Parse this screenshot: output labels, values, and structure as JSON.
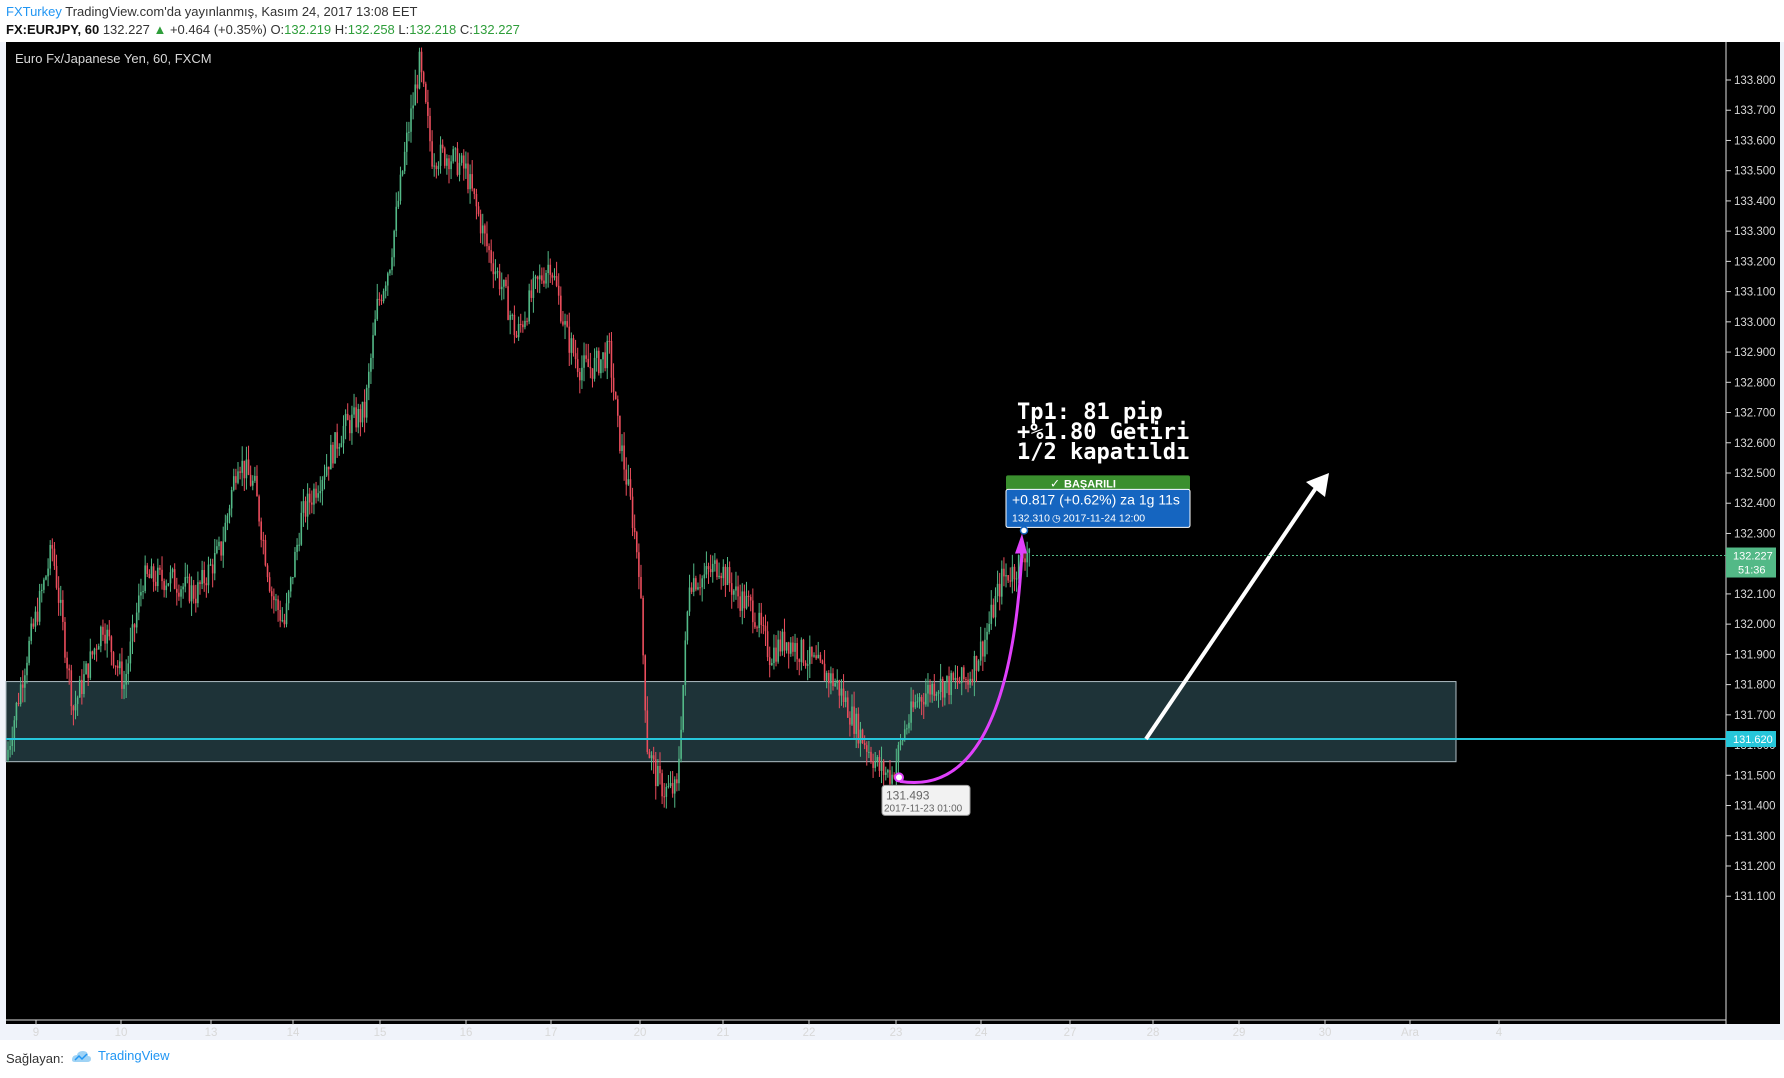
{
  "header": {
    "brand": "FXTurkey",
    "published_text": " TradingView.com'da yayınlanmış, Kasım 24, 2017 13:08 EET",
    "symbol": "FX:EURJPY, 60",
    "last_price": "132.227",
    "change_arrow": "▲",
    "change": "+0.464 (+0.35%)",
    "o_label": "O:",
    "o_value": "132.219",
    "h_label": "H:",
    "h_value": "132.258",
    "l_label": "L:",
    "l_value": "132.218",
    "c_label": "C:",
    "c_value": "132.227"
  },
  "footer": {
    "label": "Sağlayan:",
    "brand": "TradingView",
    "icon": "tradingview-logo-icon"
  },
  "chart_data": {
    "type": "candlestick",
    "title": "Euro Fx/Japanese Yen, 60, FXCM",
    "y_ticks": [
      "131.100",
      "131.200",
      "131.300",
      "131.400",
      "131.500",
      "131.600",
      "131.700",
      "131.800",
      "131.900",
      "132.000",
      "132.100",
      "132.200",
      "132.300",
      "132.400",
      "132.500",
      "132.600",
      "132.700",
      "132.800",
      "132.900",
      "133.000",
      "133.100",
      "133.200",
      "133.300",
      "133.400",
      "133.500",
      "133.600",
      "133.700",
      "133.800"
    ],
    "ylim": [
      131.05,
      133.9
    ],
    "x_ticks": [
      "9",
      "10",
      "13",
      "14",
      "15",
      "16",
      "17",
      "20",
      "21",
      "22",
      "23",
      "24",
      "27",
      "28",
      "29",
      "30",
      "Ara",
      "4"
    ],
    "colors": {
      "up": "#53b987",
      "down": "#eb4d5c",
      "background": "#000000",
      "zone": "#1e3338",
      "level_line": "#26c6da",
      "curve": "#e040fb",
      "arrow": "#ffffff",
      "badge": "#4caf50",
      "info": "#1565c0"
    },
    "anchors": [
      [
        0,
        131.55
      ],
      [
        10,
        131.9
      ],
      [
        22,
        132.25
      ],
      [
        32,
        131.72
      ],
      [
        46,
        132.0
      ],
      [
        56,
        131.8
      ],
      [
        65,
        132.15
      ],
      [
        78,
        132.15
      ],
      [
        90,
        132.1
      ],
      [
        102,
        132.25
      ],
      [
        110,
        132.55
      ],
      [
        118,
        132.45
      ],
      [
        126,
        132.1
      ],
      [
        132,
        132.0
      ],
      [
        140,
        132.35
      ],
      [
        150,
        132.5
      ],
      [
        160,
        132.65
      ],
      [
        170,
        132.7
      ],
      [
        176,
        133.05
      ],
      [
        182,
        133.2
      ],
      [
        190,
        133.6
      ],
      [
        196,
        133.85
      ],
      [
        202,
        133.55
      ],
      [
        210,
        133.55
      ],
      [
        218,
        133.5
      ],
      [
        228,
        133.25
      ],
      [
        236,
        133.1
      ],
      [
        242,
        132.95
      ],
      [
        250,
        133.1
      ],
      [
        258,
        133.2
      ],
      [
        266,
        132.95
      ],
      [
        272,
        132.85
      ],
      [
        278,
        132.85
      ],
      [
        286,
        132.9
      ],
      [
        290,
        132.65
      ],
      [
        296,
        132.4
      ],
      [
        300,
        132.2
      ],
      [
        304,
        131.6
      ],
      [
        308,
        131.5
      ],
      [
        312,
        131.45
      ],
      [
        318,
        131.45
      ],
      [
        324,
        132.15
      ],
      [
        330,
        132.15
      ],
      [
        338,
        132.2
      ],
      [
        346,
        132.1
      ],
      [
        354,
        132.05
      ],
      [
        362,
        131.9
      ],
      [
        370,
        131.95
      ],
      [
        378,
        131.9
      ],
      [
        386,
        131.85
      ],
      [
        394,
        131.8
      ],
      [
        404,
        131.65
      ],
      [
        414,
        131.52
      ],
      [
        420,
        131.5
      ],
      [
        426,
        131.65
      ],
      [
        432,
        131.75
      ],
      [
        440,
        131.8
      ],
      [
        448,
        131.8
      ],
      [
        456,
        131.82
      ],
      [
        464,
        131.95
      ],
      [
        472,
        132.15
      ],
      [
        478,
        132.18
      ],
      [
        484,
        132.25
      ]
    ],
    "last_candle_index": 484,
    "zone": {
      "from": 131.545,
      "to": 131.81,
      "end_date_label": "29"
    },
    "support_level": 131.62,
    "support_level_label": "131.620",
    "current_price_label": "132.227",
    "countdown_label": "51:36",
    "low_marker": {
      "price_label": "131.493",
      "date_label": "2017-11-23 01:00"
    },
    "measure": {
      "badge": "BAŞARILI",
      "badge_icon": "checkmark-icon",
      "change_text": "+0.817 (+0.62%) za 1g 11s",
      "price_text": "132.310",
      "date_text": "2017-11-24 12:00",
      "date_icon": "clock-icon"
    },
    "annotation": {
      "line1": "Tp1: 81 pip",
      "line2": "+%1.80 Getiri",
      "line3": "1/2 kapatıldı"
    }
  }
}
